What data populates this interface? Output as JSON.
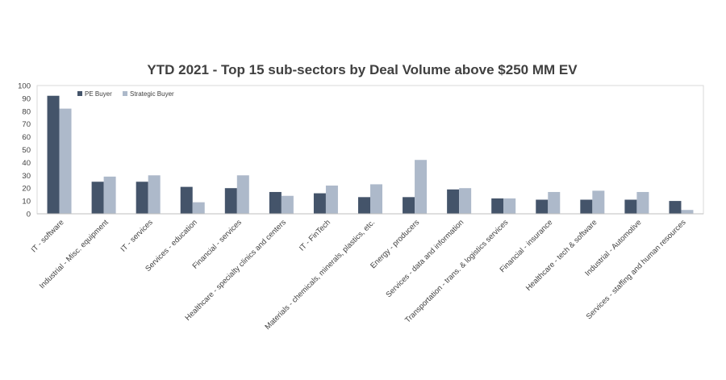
{
  "chart_data": {
    "type": "bar",
    "title": "YTD 2021 - Top 15 sub-sectors by Deal Volume above $250 MM EV",
    "xlabel": "",
    "ylabel": "",
    "ylim": [
      0,
      100
    ],
    "yticks": [
      "0",
      "10",
      "20",
      "30",
      "40",
      "50",
      "60",
      "70",
      "80",
      "90",
      "100"
    ],
    "grid": false,
    "legend_position": "top-left",
    "categories": [
      "IT - software",
      "Industrial - Misc. equipment",
      "IT - services",
      "Services - education",
      "Financial - services",
      "Healthcare - specialty clinics and centers",
      "IT - FinTech",
      "Materials - chemicals, minerals, plastics, etc.",
      "Energy - producers",
      "Services - data and information",
      "Transportation - trans. & logistics services",
      "Financial - insurance",
      "Healthcare - tech & software",
      "Industrial - Automotive",
      "Services - staffing and human resources"
    ],
    "series": [
      {
        "name": "PE Buyer",
        "color": "#44546a",
        "values": [
          92,
          25,
          25,
          21,
          20,
          17,
          16,
          13,
          13,
          19,
          12,
          11,
          11,
          11,
          10
        ]
      },
      {
        "name": "Strategic Buyer",
        "color": "#adb9ca",
        "values": [
          82,
          29,
          30,
          9,
          30,
          14,
          22,
          23,
          42,
          20,
          12,
          17,
          18,
          17,
          3
        ]
      }
    ]
  }
}
